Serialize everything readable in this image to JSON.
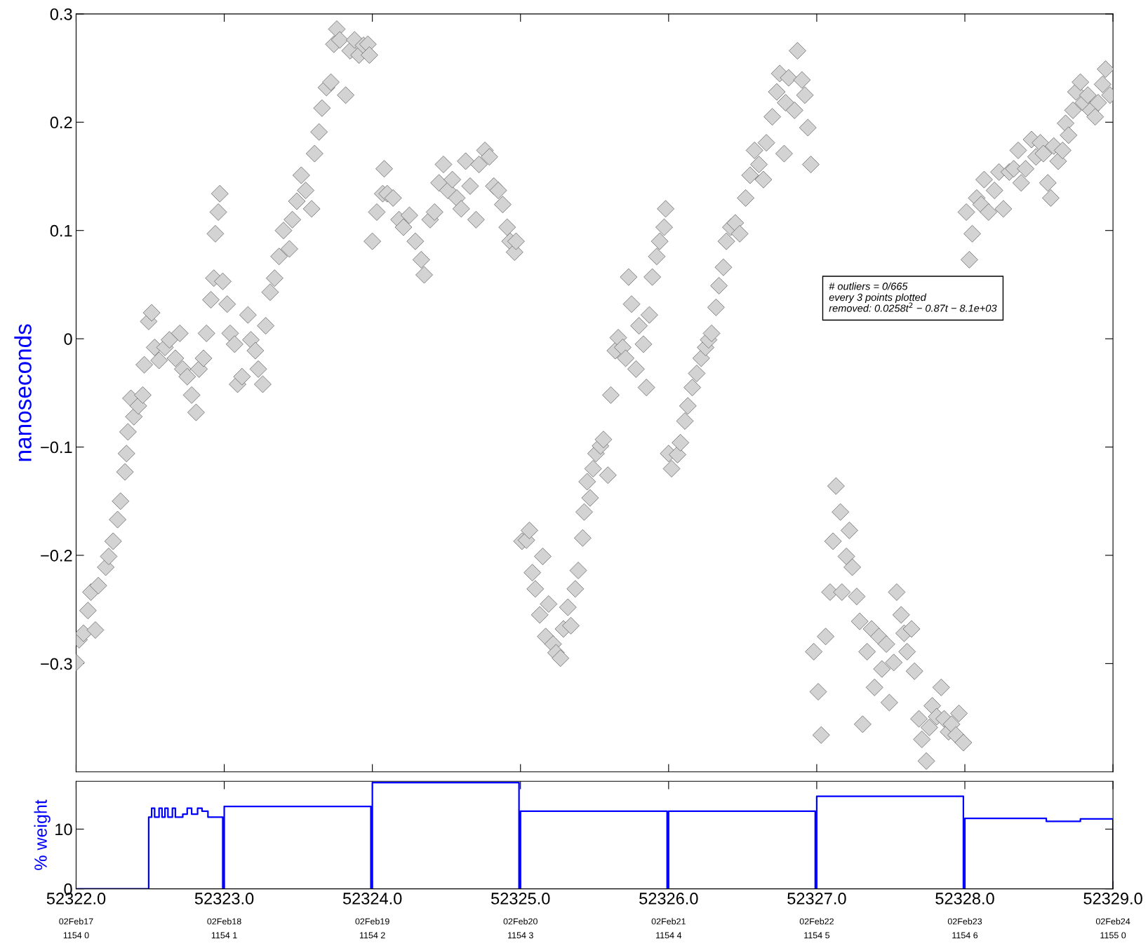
{
  "chart_data": [
    {
      "type": "scatter",
      "ylabel": "nanoseconds",
      "marker": "diamond",
      "grid": false,
      "tick_labels": "y",
      "xlim": [
        52322,
        52329
      ],
      "ylim": [
        -0.4,
        0.3
      ],
      "xticks": [
        {
          "value": 52322,
          "label": null
        },
        {
          "value": 52323,
          "label": null
        },
        {
          "value": 52324,
          "label": null
        },
        {
          "value": 52325,
          "label": null
        },
        {
          "value": 52326,
          "label": null
        },
        {
          "value": 52327,
          "label": null
        },
        {
          "value": 52328,
          "label": null
        },
        {
          "value": 52329,
          "label": null
        }
      ],
      "yticks": [
        {
          "value": -0.3,
          "label": "−0.3"
        },
        {
          "value": -0.2,
          "label": "−0.2"
        },
        {
          "value": -0.1,
          "label": "−0.1"
        },
        0,
        0.1,
        0.2,
        0.3
      ],
      "annotations": [
        "# outliers = 0/665\nevery 3 points plotted\nremoved: 0.0258t$^{2}$ − 0.87t − 8.1e+03"
      ],
      "series": [
        {
          "color": "#d3d3d3",
          "x": [
            52322.0,
            52322.02,
            52322.05,
            52322.08,
            52322.1,
            52322.13,
            52322.15,
            52322.2,
            52322.22,
            52322.25,
            52322.28,
            52322.3,
            52322.33,
            52322.34,
            52322.35,
            52322.37,
            52322.39,
            52322.42,
            52322.45,
            52322.46,
            52322.49,
            52322.51,
            52322.53,
            52322.56,
            52322.6,
            52322.63,
            52322.67,
            52322.7,
            52322.72,
            52322.75,
            52322.78,
            52322.81,
            52322.83,
            52322.86,
            52322.88,
            52322.91,
            52322.93,
            52322.94,
            52322.96,
            52322.97,
            52322.99,
            52323.02,
            52323.04,
            52323.07,
            52323.09,
            52323.12,
            52323.16,
            52323.18,
            52323.21,
            52323.23,
            52323.26,
            52323.28,
            52323.31,
            52323.34,
            52323.37,
            52323.4,
            52323.44,
            52323.46,
            52323.49,
            52323.52,
            52323.55,
            52323.59,
            52323.61,
            52323.64,
            52323.66,
            52323.69,
            52323.72,
            52323.74,
            52323.76,
            52323.78,
            52323.82,
            52323.85,
            52323.88,
            52323.91,
            52323.94,
            52323.97,
            52323.98,
            52324.0,
            52324.03,
            52324.07,
            52324.08,
            52324.1,
            52324.14,
            52324.18,
            52324.21,
            52324.25,
            52324.29,
            52324.33,
            52324.35,
            52324.39,
            52324.42,
            52324.45,
            52324.48,
            52324.51,
            52324.54,
            52324.57,
            52324.6,
            52324.63,
            52324.66,
            52324.7,
            52324.72,
            52324.76,
            52324.79,
            52324.82,
            52324.85,
            52324.88,
            52324.91,
            52324.93,
            52324.96,
            52324.97,
            52325.01,
            52325.04,
            52325.06,
            52325.08,
            52325.1,
            52325.13,
            52325.15,
            52325.17,
            52325.19,
            52325.22,
            52325.24,
            52325.27,
            52325.29,
            52325.32,
            52325.34,
            52325.37,
            52325.39,
            52325.42,
            52325.43,
            52325.45,
            52325.47,
            52325.49,
            52325.51,
            52325.54,
            52325.56,
            52325.59,
            52325.61,
            52325.64,
            52325.66,
            52325.69,
            52325.71,
            52325.73,
            52325.75,
            52325.78,
            52325.8,
            52325.83,
            52325.85,
            52325.87,
            52325.89,
            52325.92,
            52325.94,
            52325.97,
            52325.98,
            52326.0,
            52326.02,
            52326.06,
            52326.08,
            52326.11,
            52326.13,
            52326.16,
            52326.19,
            52326.22,
            52326.25,
            52326.27,
            52326.29,
            52326.32,
            52326.34,
            52326.37,
            52326.39,
            52326.42,
            52326.45,
            52326.48,
            52326.52,
            52326.55,
            52326.58,
            52326.61,
            52326.64,
            52326.66,
            52326.7,
            52326.73,
            52326.75,
            52326.78,
            52326.79,
            52326.81,
            52326.85,
            52326.87,
            52326.9,
            52326.92,
            52326.94,
            52326.96,
            52326.98,
            52327.01,
            52327.03,
            52327.06,
            52327.09,
            52327.11,
            52327.13,
            52327.16,
            52327.17,
            52327.2,
            52327.22,
            52327.24,
            52327.27,
            52327.29,
            52327.31,
            52327.34,
            52327.37,
            52327.39,
            52327.42,
            52327.44,
            52327.47,
            52327.49,
            52327.52,
            52327.54,
            52327.57,
            52327.59,
            52327.61,
            52327.64,
            52327.66,
            52327.69,
            52327.71,
            52327.74,
            52327.76,
            52327.78,
            52327.81,
            52327.84,
            52327.86,
            52327.89,
            52327.91,
            52327.94,
            52327.96,
            52327.99,
            52328.01,
            52328.03,
            52328.05,
            52328.08,
            52328.11,
            52328.13,
            52328.16,
            52328.2,
            52328.23,
            52328.26,
            52328.3,
            52328.33,
            52328.36,
            52328.38,
            52328.41,
            52328.45,
            52328.48,
            52328.51,
            52328.53,
            52328.56,
            52328.58,
            52328.6,
            52328.63,
            52328.66,
            52328.68,
            52328.7,
            52328.73,
            52328.75,
            52328.78,
            52328.8,
            52328.83,
            52328.85,
            52328.88,
            52328.9,
            52328.93,
            52328.95,
            52328.98
          ],
          "values": [
            -0.299,
            -0.278,
            -0.272,
            -0.251,
            -0.234,
            -0.269,
            -0.228,
            -0.211,
            -0.201,
            -0.187,
            -0.167,
            -0.15,
            -0.123,
            -0.106,
            -0.086,
            -0.055,
            -0.072,
            -0.062,
            -0.052,
            -0.024,
            0.016,
            0.024,
            -0.008,
            -0.02,
            -0.008,
            -0.001,
            -0.018,
            0.005,
            -0.028,
            -0.035,
            -0.052,
            -0.068,
            -0.028,
            -0.018,
            0.005,
            0.036,
            0.056,
            0.097,
            0.117,
            0.134,
            0.053,
            0.032,
            0.005,
            -0.005,
            -0.042,
            -0.035,
            0.022,
            -0.001,
            -0.011,
            -0.028,
            -0.042,
            0.012,
            0.043,
            0.056,
            0.076,
            0.1,
            0.083,
            0.11,
            0.127,
            0.151,
            0.137,
            0.12,
            0.171,
            0.191,
            0.213,
            0.232,
            0.237,
            0.272,
            0.286,
            0.276,
            0.225,
            0.266,
            0.276,
            0.262,
            0.271,
            0.272,
            0.262,
            0.09,
            0.117,
            0.134,
            0.157,
            0.134,
            0.13,
            0.11,
            0.103,
            0.114,
            0.09,
            0.073,
            0.059,
            0.11,
            0.117,
            0.144,
            0.161,
            0.137,
            0.147,
            0.13,
            0.12,
            0.164,
            0.141,
            0.11,
            0.161,
            0.174,
            0.168,
            0.141,
            0.137,
            0.124,
            0.103,
            0.09,
            0.08,
            0.09,
            -0.187,
            -0.186,
            -0.177,
            -0.216,
            -0.231,
            -0.255,
            -0.201,
            -0.275,
            -0.245,
            -0.282,
            -0.29,
            -0.295,
            -0.268,
            -0.248,
            -0.265,
            -0.231,
            -0.214,
            -0.184,
            -0.16,
            -0.132,
            -0.147,
            -0.12,
            -0.106,
            -0.099,
            -0.093,
            -0.126,
            -0.052,
            -0.011,
            0.001,
            -0.008,
            -0.018,
            0.057,
            0.032,
            -0.028,
            0.012,
            -0.005,
            -0.045,
            0.022,
            0.057,
            0.076,
            0.09,
            0.103,
            0.12,
            -0.106,
            -0.12,
            -0.107,
            -0.096,
            -0.076,
            -0.062,
            -0.045,
            -0.032,
            -0.018,
            -0.008,
            -0.001,
            0.005,
            0.029,
            0.049,
            0.066,
            0.09,
            0.103,
            0.107,
            0.097,
            0.13,
            0.151,
            0.174,
            0.161,
            0.147,
            0.181,
            0.205,
            0.228,
            0.245,
            0.171,
            0.218,
            0.241,
            0.211,
            0.266,
            0.239,
            0.225,
            0.195,
            0.161,
            -0.289,
            -0.326,
            -0.366,
            -0.275,
            -0.234,
            -0.187,
            -0.136,
            -0.16,
            -0.234,
            -0.201,
            -0.177,
            -0.211,
            -0.238,
            -0.261,
            -0.356,
            -0.289,
            -0.268,
            -0.322,
            -0.275,
            -0.305,
            -0.282,
            -0.336,
            -0.299,
            -0.234,
            -0.255,
            -0.272,
            -0.289,
            -0.268,
            -0.307,
            -0.351,
            -0.37,
            -0.39,
            -0.359,
            -0.339,
            -0.349,
            -0.322,
            -0.351,
            -0.363,
            -0.356,
            -0.366,
            -0.346,
            -0.373,
            0.117,
            0.073,
            0.097,
            0.13,
            0.124,
            0.147,
            0.117,
            0.137,
            0.154,
            0.12,
            0.154,
            0.157,
            0.174,
            0.144,
            0.157,
            0.184,
            0.168,
            0.181,
            0.171,
            0.144,
            0.13,
            0.178,
            0.164,
            0.174,
            0.199,
            0.188,
            0.211,
            0.228,
            0.237,
            0.218,
            0.225,
            0.211,
            0.205,
            0.218,
            0.235,
            0.249,
            0.225
          ]
        }
      ]
    },
    {
      "type": "step",
      "ylabel": "% weight",
      "grid": false,
      "marker": "none",
      "line_style": "solid",
      "xlim": [
        52322,
        52329
      ],
      "ylim": [
        0,
        18
      ],
      "yticks": [
        0,
        10
      ],
      "xticks": [
        {
          "value": 52322,
          "label": "52322.0"
        },
        {
          "value": 52323,
          "label": "52323.0"
        },
        {
          "value": 52324,
          "label": "52324.0"
        },
        {
          "value": 52325,
          "label": "52325.0"
        },
        {
          "value": 52326,
          "label": "52326.0"
        },
        {
          "value": 52327,
          "label": "52327.0"
        },
        {
          "value": 52328,
          "label": "52328.0"
        },
        {
          "value": 52329,
          "label": "52329.0"
        }
      ],
      "annotations": [
        "02Feb17\n1154 0",
        "02Feb18\n1154 1",
        "02Feb19\n1154 2",
        "02Feb20\n1154 3",
        "02Feb21\n1154 4",
        "02Feb22\n1154 5",
        "02Feb23\n1154 6",
        "02Feb24\n1155 0"
      ],
      "series": [
        {
          "color": "#0000ff",
          "x": [
            52322.0,
            52322.49,
            52322.51,
            52322.53,
            52322.56,
            52322.58,
            52322.6,
            52322.62,
            52322.65,
            52322.67,
            52322.72,
            52322.75,
            52322.78,
            52322.82,
            52322.85,
            52322.89,
            52322.99,
            52323.0,
            52323.99,
            52324.0,
            52324.99,
            52325.0,
            52325.99,
            52326.0,
            52326.99,
            52327.0,
            52327.99,
            52328.0,
            52328.55,
            52328.78,
            52329.0
          ],
          "values": [
            0,
            12,
            13.5,
            12,
            13.5,
            12,
            13.5,
            12,
            13.5,
            12,
            12.5,
            13.5,
            12.5,
            13.5,
            13,
            12,
            0,
            13.8,
            0,
            17.8,
            0,
            13,
            0,
            13,
            0,
            15.5,
            0,
            11.8,
            11.3,
            11.7,
            0
          ]
        }
      ]
    }
  ]
}
